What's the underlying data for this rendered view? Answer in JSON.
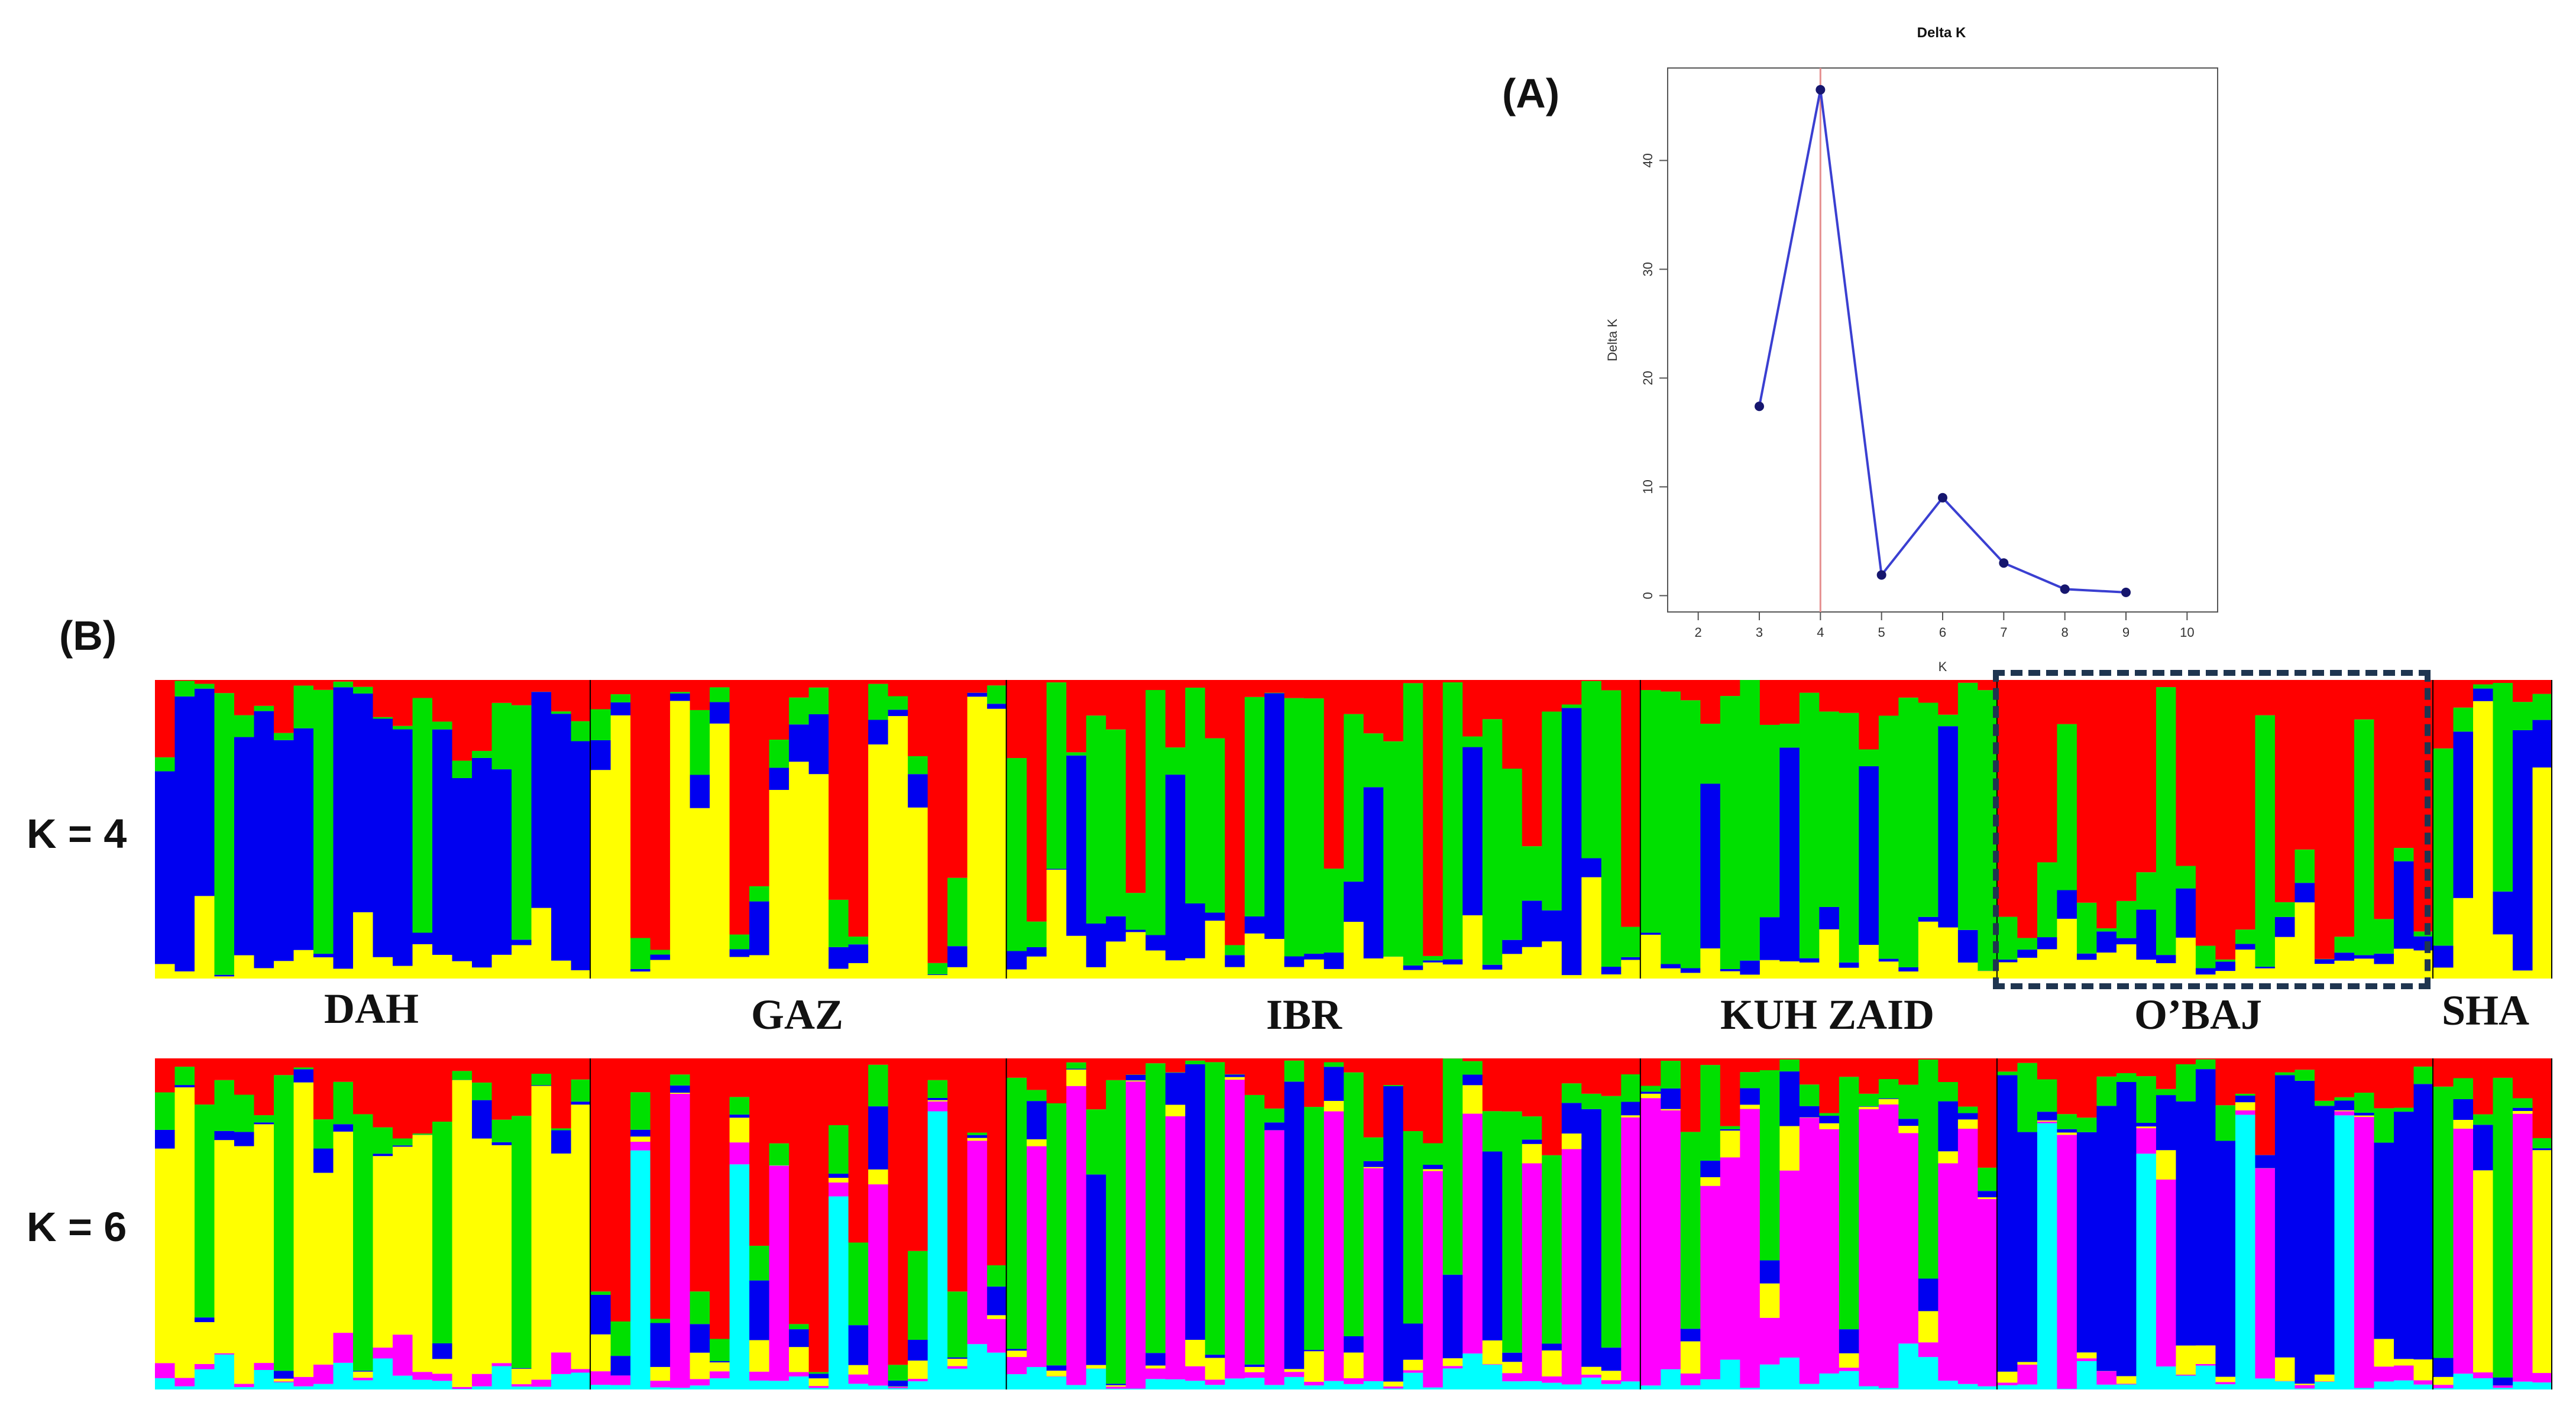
{
  "panel_a_label": "(A)",
  "panel_b_label": "(B)",
  "chart_data": [
    {
      "type": "line",
      "title": "Delta K",
      "xlabel": "K",
      "ylabel": "Delta K",
      "x": [
        3,
        4,
        5,
        6,
        7,
        8,
        9
      ],
      "values": [
        17.4,
        46.5,
        1.9,
        9.0,
        3.0,
        0.6,
        0.3
      ],
      "xlim": [
        1.5,
        10.5
      ],
      "ylim": [
        -1.5,
        48.5
      ],
      "xticks": [
        2,
        3,
        4,
        5,
        6,
        7,
        8,
        9,
        10
      ],
      "yticks": [
        0,
        10,
        20,
        30,
        40
      ],
      "vline_x": 4,
      "colors": {
        "line": "#3a3fd1",
        "point": "#16166e",
        "vline": "#e58f8f"
      }
    },
    {
      "type": "bar",
      "subtype": "structure-admixture",
      "row_label": "K = 4",
      "populations": [
        "DAH",
        "GAZ",
        "IBR",
        "KUH ZAID",
        "O'BAJ",
        "SHA"
      ],
      "population_labels_display": [
        "DAH",
        "GAZ",
        "IBR",
        "KUH ZAID",
        "O’BAJ",
        "SHA"
      ],
      "clusters": [
        "red",
        "green",
        "blue",
        "yellow"
      ],
      "colors": {
        "red": "#ff0000",
        "green": "#00e000",
        "blue": "#0000f0",
        "yellow": "#ffff00"
      },
      "samples_per_population": [
        22,
        21,
        32,
        18,
        22,
        6
      ],
      "highlighted_population": "O'BAJ"
    },
    {
      "type": "bar",
      "subtype": "structure-admixture",
      "row_label": "K = 6",
      "populations": [
        "DAH",
        "GAZ",
        "IBR",
        "KUH ZAID",
        "O'BAJ",
        "SHA"
      ],
      "clusters": [
        "red",
        "green",
        "blue",
        "yellow",
        "magenta",
        "cyan"
      ],
      "colors": {
        "red": "#ff0000",
        "green": "#00e000",
        "blue": "#0000f0",
        "yellow": "#ffff00",
        "magenta": "#ff00ff",
        "cyan": "#00ffff"
      },
      "samples_per_population": [
        22,
        21,
        32,
        18,
        22,
        6
      ]
    }
  ]
}
